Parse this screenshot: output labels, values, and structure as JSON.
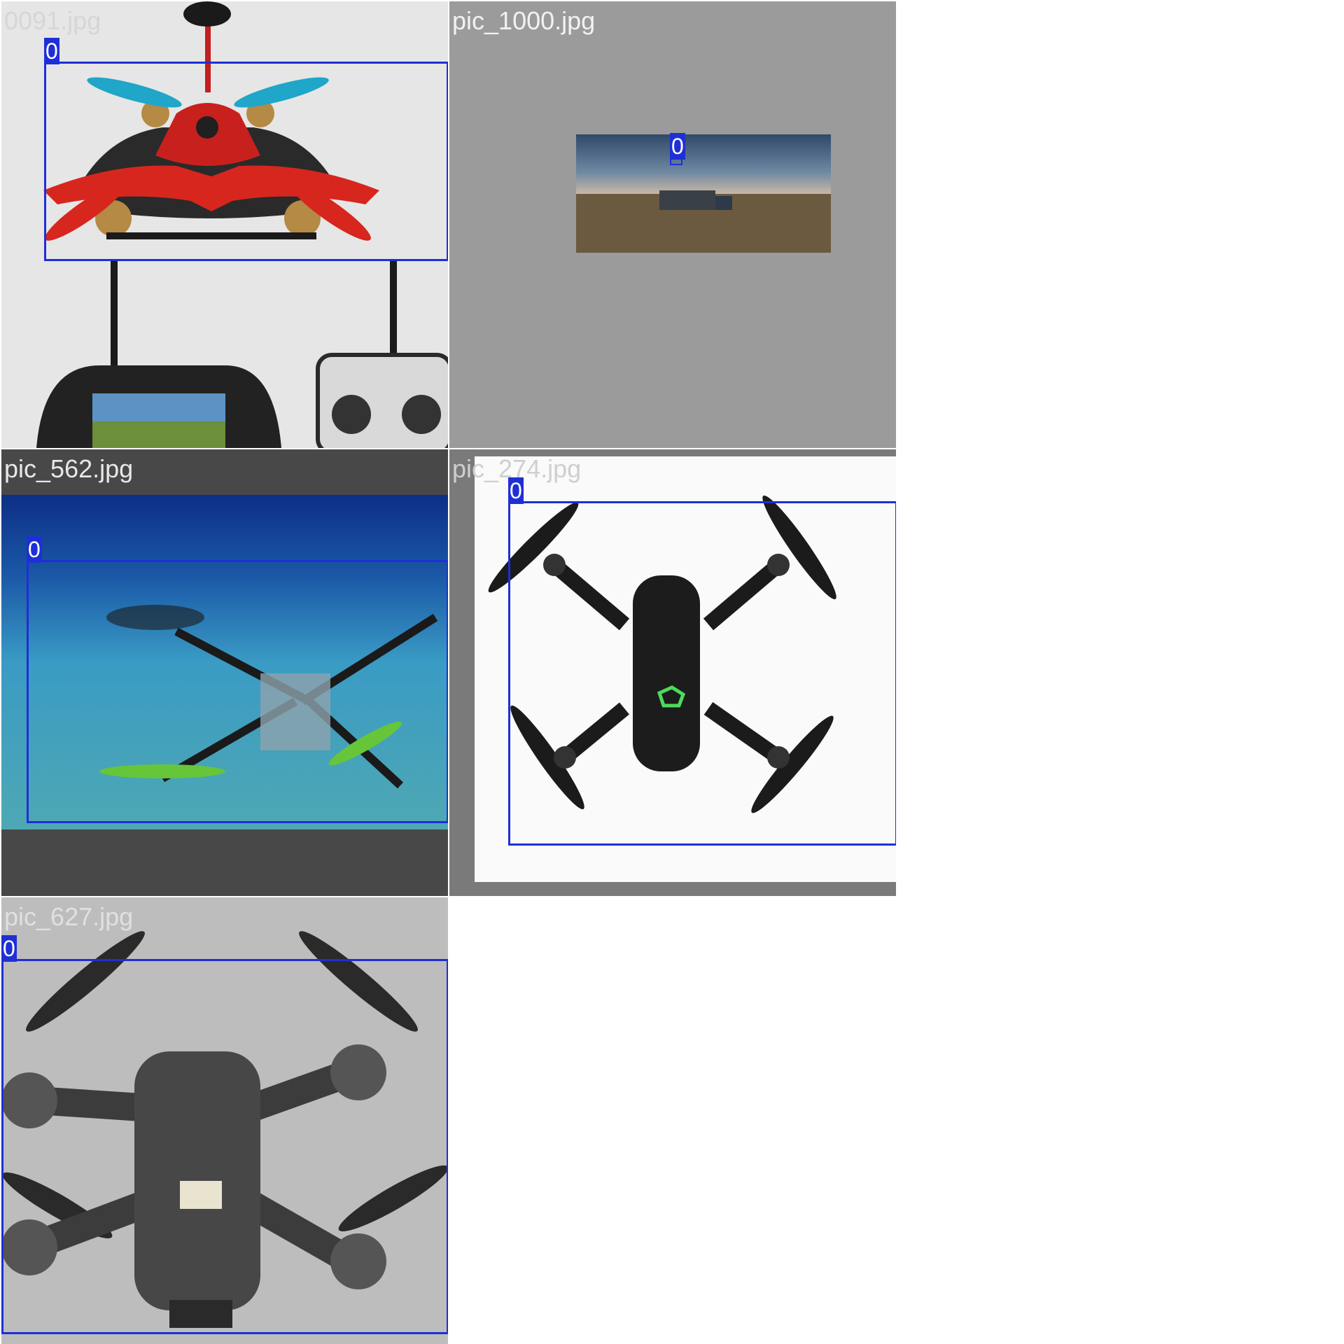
{
  "grid": {
    "background": "#ffffff",
    "box_color": "#1f2fd6",
    "tiles": [
      {
        "filename": "0091.jpg",
        "background": "#e6e6e6",
        "filename_color": "#d6d6d6",
        "detections": [
          {
            "class_label": "0"
          }
        ],
        "content": "red-racing-quadcopter with fpv-goggles and rc-transmitter"
      },
      {
        "filename": "pic_1000.jpg",
        "background": "#9b9b9b",
        "filename_color": "#f2f2f2",
        "detections": [
          {
            "class_label": "0"
          }
        ],
        "content": "landscape photo with truck on grassland, cloudy sky, wind turbines"
      },
      {
        "filename": "pic_562.jpg",
        "background": "#484848",
        "filename_color": "#e8e8e8",
        "detections": [
          {
            "class_label": "0"
          }
        ],
        "content": "quadcopter underwater in a pool"
      },
      {
        "filename": "pic_274.jpg",
        "background": "#7a7a7a",
        "filename_color": "#cfcfcf",
        "detections": [
          {
            "class_label": "0"
          }
        ],
        "content": "black folding quadcopter top view on white"
      },
      {
        "filename": "pic_627.jpg",
        "background": "#bdbdbd",
        "filename_color": "#e0e0e0",
        "detections": [
          {
            "class_label": "0"
          }
        ],
        "content": "grey quadcopter front view"
      }
    ]
  }
}
